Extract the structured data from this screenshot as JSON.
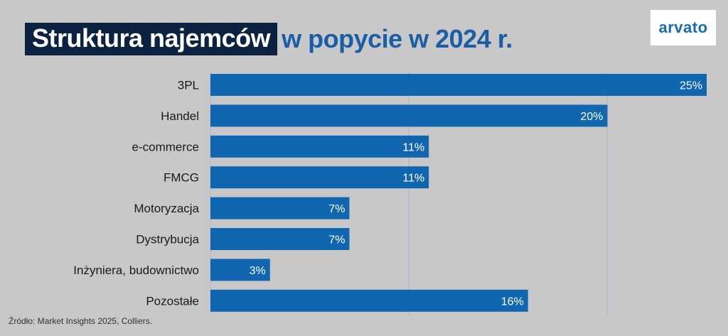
{
  "header": {
    "title_highlight": "Struktura najemców",
    "title_rest": "w popycie w 2024 r."
  },
  "logo": {
    "text": "arvato"
  },
  "source": "Źródło: Market Insights 2025, Colliers.",
  "colors": {
    "bar": "#1166b0",
    "gridline": "#9fb7cf",
    "background": "#c8c8c8",
    "title_highlight_bg": "#0b2340",
    "title_text": "#1a5fa6"
  },
  "chart_data": {
    "type": "bar",
    "orientation": "horizontal",
    "title": "Struktura najemców w popycie w 2024 r.",
    "categories": [
      "3PL",
      "Handel",
      "e-commerce",
      "FMCG",
      "Motoryzacja",
      "Dystrybucja",
      "Inżyniera, budownictwo",
      "Pozostałe"
    ],
    "values": [
      25,
      20,
      11,
      11,
      7,
      7,
      3,
      16
    ],
    "data_labels": [
      "25%",
      "20%",
      "11%",
      "11%",
      "7%",
      "7%",
      "3%",
      "16%"
    ],
    "unit": "%",
    "xlim": [
      0,
      25
    ],
    "grid": true
  }
}
